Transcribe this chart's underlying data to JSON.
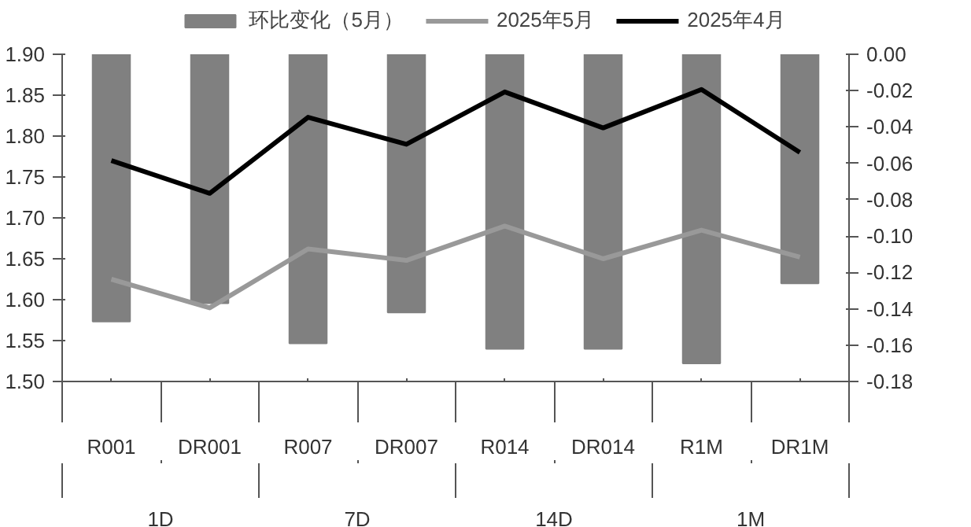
{
  "chart_data": {
    "type": "line",
    "categories": [
      "R001",
      "DR001",
      "R007",
      "DR007",
      "R014",
      "DR014",
      "R1M",
      "DR1M"
    ],
    "annotations": [
      "1D",
      "7D",
      "14D",
      "1M"
    ],
    "series": [
      {
        "name": "环比变化（5月）",
        "type": "bar",
        "axis": "y2",
        "color": "#808080",
        "values": [
          -0.147,
          -0.137,
          -0.159,
          -0.142,
          -0.162,
          -0.162,
          -0.17,
          -0.126
        ]
      },
      {
        "name": "2025年5月",
        "color": "#999999",
        "values": [
          1.625,
          1.59,
          1.662,
          1.648,
          1.69,
          1.65,
          1.685,
          1.652
        ]
      },
      {
        "name": "2025年4月",
        "color": "#000000",
        "values": [
          1.77,
          1.73,
          1.823,
          1.79,
          1.854,
          1.81,
          1.857,
          1.78
        ]
      }
    ],
    "ylim": [
      1.5,
      1.9
    ],
    "yticks": [
      {
        "value": 1.5,
        "label": "1.50"
      },
      {
        "value": 1.55,
        "label": "1.55"
      },
      {
        "value": 1.6,
        "label": "1.60"
      },
      {
        "value": 1.65,
        "label": "1.65"
      },
      {
        "value": 1.7,
        "label": "1.70"
      },
      {
        "value": 1.75,
        "label": "1.75"
      },
      {
        "value": 1.8,
        "label": "1.80"
      },
      {
        "value": 1.85,
        "label": "1.85"
      },
      {
        "value": 1.9,
        "label": "1.90"
      }
    ],
    "y2lim": [
      -0.18,
      0
    ],
    "y2ticks": [
      {
        "value": -0.18,
        "label": "-0.18"
      },
      {
        "value": -0.16,
        "label": "-0.16"
      },
      {
        "value": -0.14,
        "label": "-0.14"
      },
      {
        "value": -0.12,
        "label": "-0.12"
      },
      {
        "value": -0.1,
        "label": "-0.10"
      },
      {
        "value": -0.08,
        "label": "-0.08"
      },
      {
        "value": -0.06,
        "label": "-0.06"
      },
      {
        "value": -0.04,
        "label": "-0.04"
      },
      {
        "value": -0.02,
        "label": "-0.02"
      },
      {
        "value": 0,
        "label": "0.00"
      }
    ],
    "legend": "top",
    "grid": false,
    "marker": "none",
    "line_style": "solid"
  }
}
